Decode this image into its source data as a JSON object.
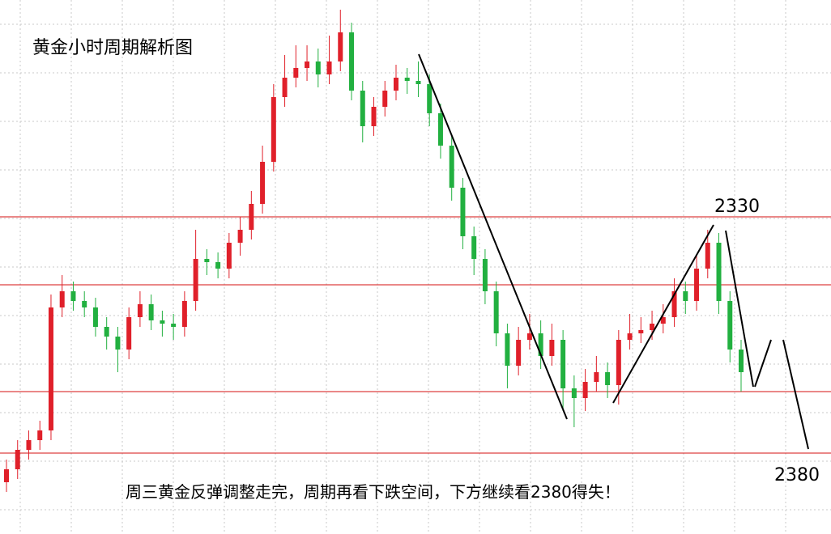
{
  "chart_data": {
    "type": "candlestick",
    "title": "黄金小时周期解析图",
    "annotations": [
      "2330",
      "2380"
    ],
    "caption": "周三黄金反弹调整走完，周期再看下跌空间，下方继续看2380得失！",
    "up_color": "#e0202a",
    "down_color": "#22b040",
    "level_color": "#d41010",
    "ylim": [
      2280,
      2445
    ],
    "levels": [
      2378,
      2357,
      2324,
      2305
    ],
    "open": [
      2296,
      2300,
      2306,
      2309,
      2312,
      2350,
      2355,
      2352,
      2350,
      2344,
      2341,
      2337,
      2347,
      2351,
      2346,
      2345,
      2344,
      2352,
      2365,
      2364,
      2362,
      2370,
      2374,
      2382,
      2395,
      2415,
      2421,
      2424,
      2426,
      2422,
      2426,
      2435,
      2417,
      2406,
      2412,
      2417,
      2421,
      2420,
      2419,
      2410,
      2400,
      2387,
      2372,
      2365,
      2355,
      2342,
      2332,
      2340,
      2342,
      2335,
      2340,
      2325,
      2322,
      2327,
      2330,
      2326,
      2340,
      2342,
      2343,
      2345,
      2347,
      2355,
      2352,
      2362,
      2370,
      2352,
      2337
    ],
    "high": [
      2303,
      2309,
      2312,
      2315,
      2354,
      2360,
      2358,
      2355,
      2353,
      2347,
      2344,
      2350,
      2355,
      2354,
      2349,
      2348,
      2355,
      2374,
      2368,
      2367,
      2373,
      2378,
      2386,
      2400,
      2419,
      2428,
      2431,
      2431,
      2430,
      2434,
      2442,
      2438,
      2420,
      2415,
      2420,
      2425,
      2424,
      2426,
      2422,
      2413,
      2403,
      2390,
      2375,
      2368,
      2358,
      2345,
      2344,
      2348,
      2346,
      2345,
      2343,
      2329,
      2331,
      2335,
      2333,
      2343,
      2348,
      2347,
      2349,
      2351,
      2359,
      2358,
      2366,
      2374,
      2373,
      2355,
      2340
    ],
    "low": [
      2293,
      2297,
      2303,
      2306,
      2309,
      2347,
      2349,
      2347,
      2341,
      2337,
      2330,
      2334,
      2344,
      2343,
      2341,
      2340,
      2341,
      2349,
      2360,
      2359,
      2359,
      2366,
      2371,
      2379,
      2392,
      2412,
      2418,
      2420,
      2418,
      2419,
      2423,
      2414,
      2401,
      2403,
      2409,
      2414,
      2416,
      2415,
      2406,
      2396,
      2383,
      2368,
      2360,
      2351,
      2338,
      2325,
      2329,
      2337,
      2331,
      2332,
      2318,
      2313,
      2318,
      2324,
      2322,
      2320,
      2337,
      2339,
      2340,
      2342,
      2344,
      2348,
      2349,
      2359,
      2348,
      2333,
      2324
    ],
    "close": [
      2300,
      2306,
      2309,
      2312,
      2350,
      2355,
      2352,
      2350,
      2344,
      2341,
      2337,
      2347,
      2351,
      2346,
      2345,
      2344,
      2352,
      2365,
      2364,
      2362,
      2370,
      2374,
      2382,
      2395,
      2415,
      2421,
      2424,
      2426,
      2422,
      2426,
      2435,
      2417,
      2406,
      2412,
      2417,
      2421,
      2420,
      2419,
      2410,
      2400,
      2387,
      2372,
      2365,
      2355,
      2342,
      2332,
      2340,
      2342,
      2335,
      2340,
      2325,
      2322,
      2327,
      2330,
      2326,
      2340,
      2342,
      2343,
      2345,
      2347,
      2355,
      2352,
      2362,
      2370,
      2352,
      2337,
      2330
    ]
  }
}
